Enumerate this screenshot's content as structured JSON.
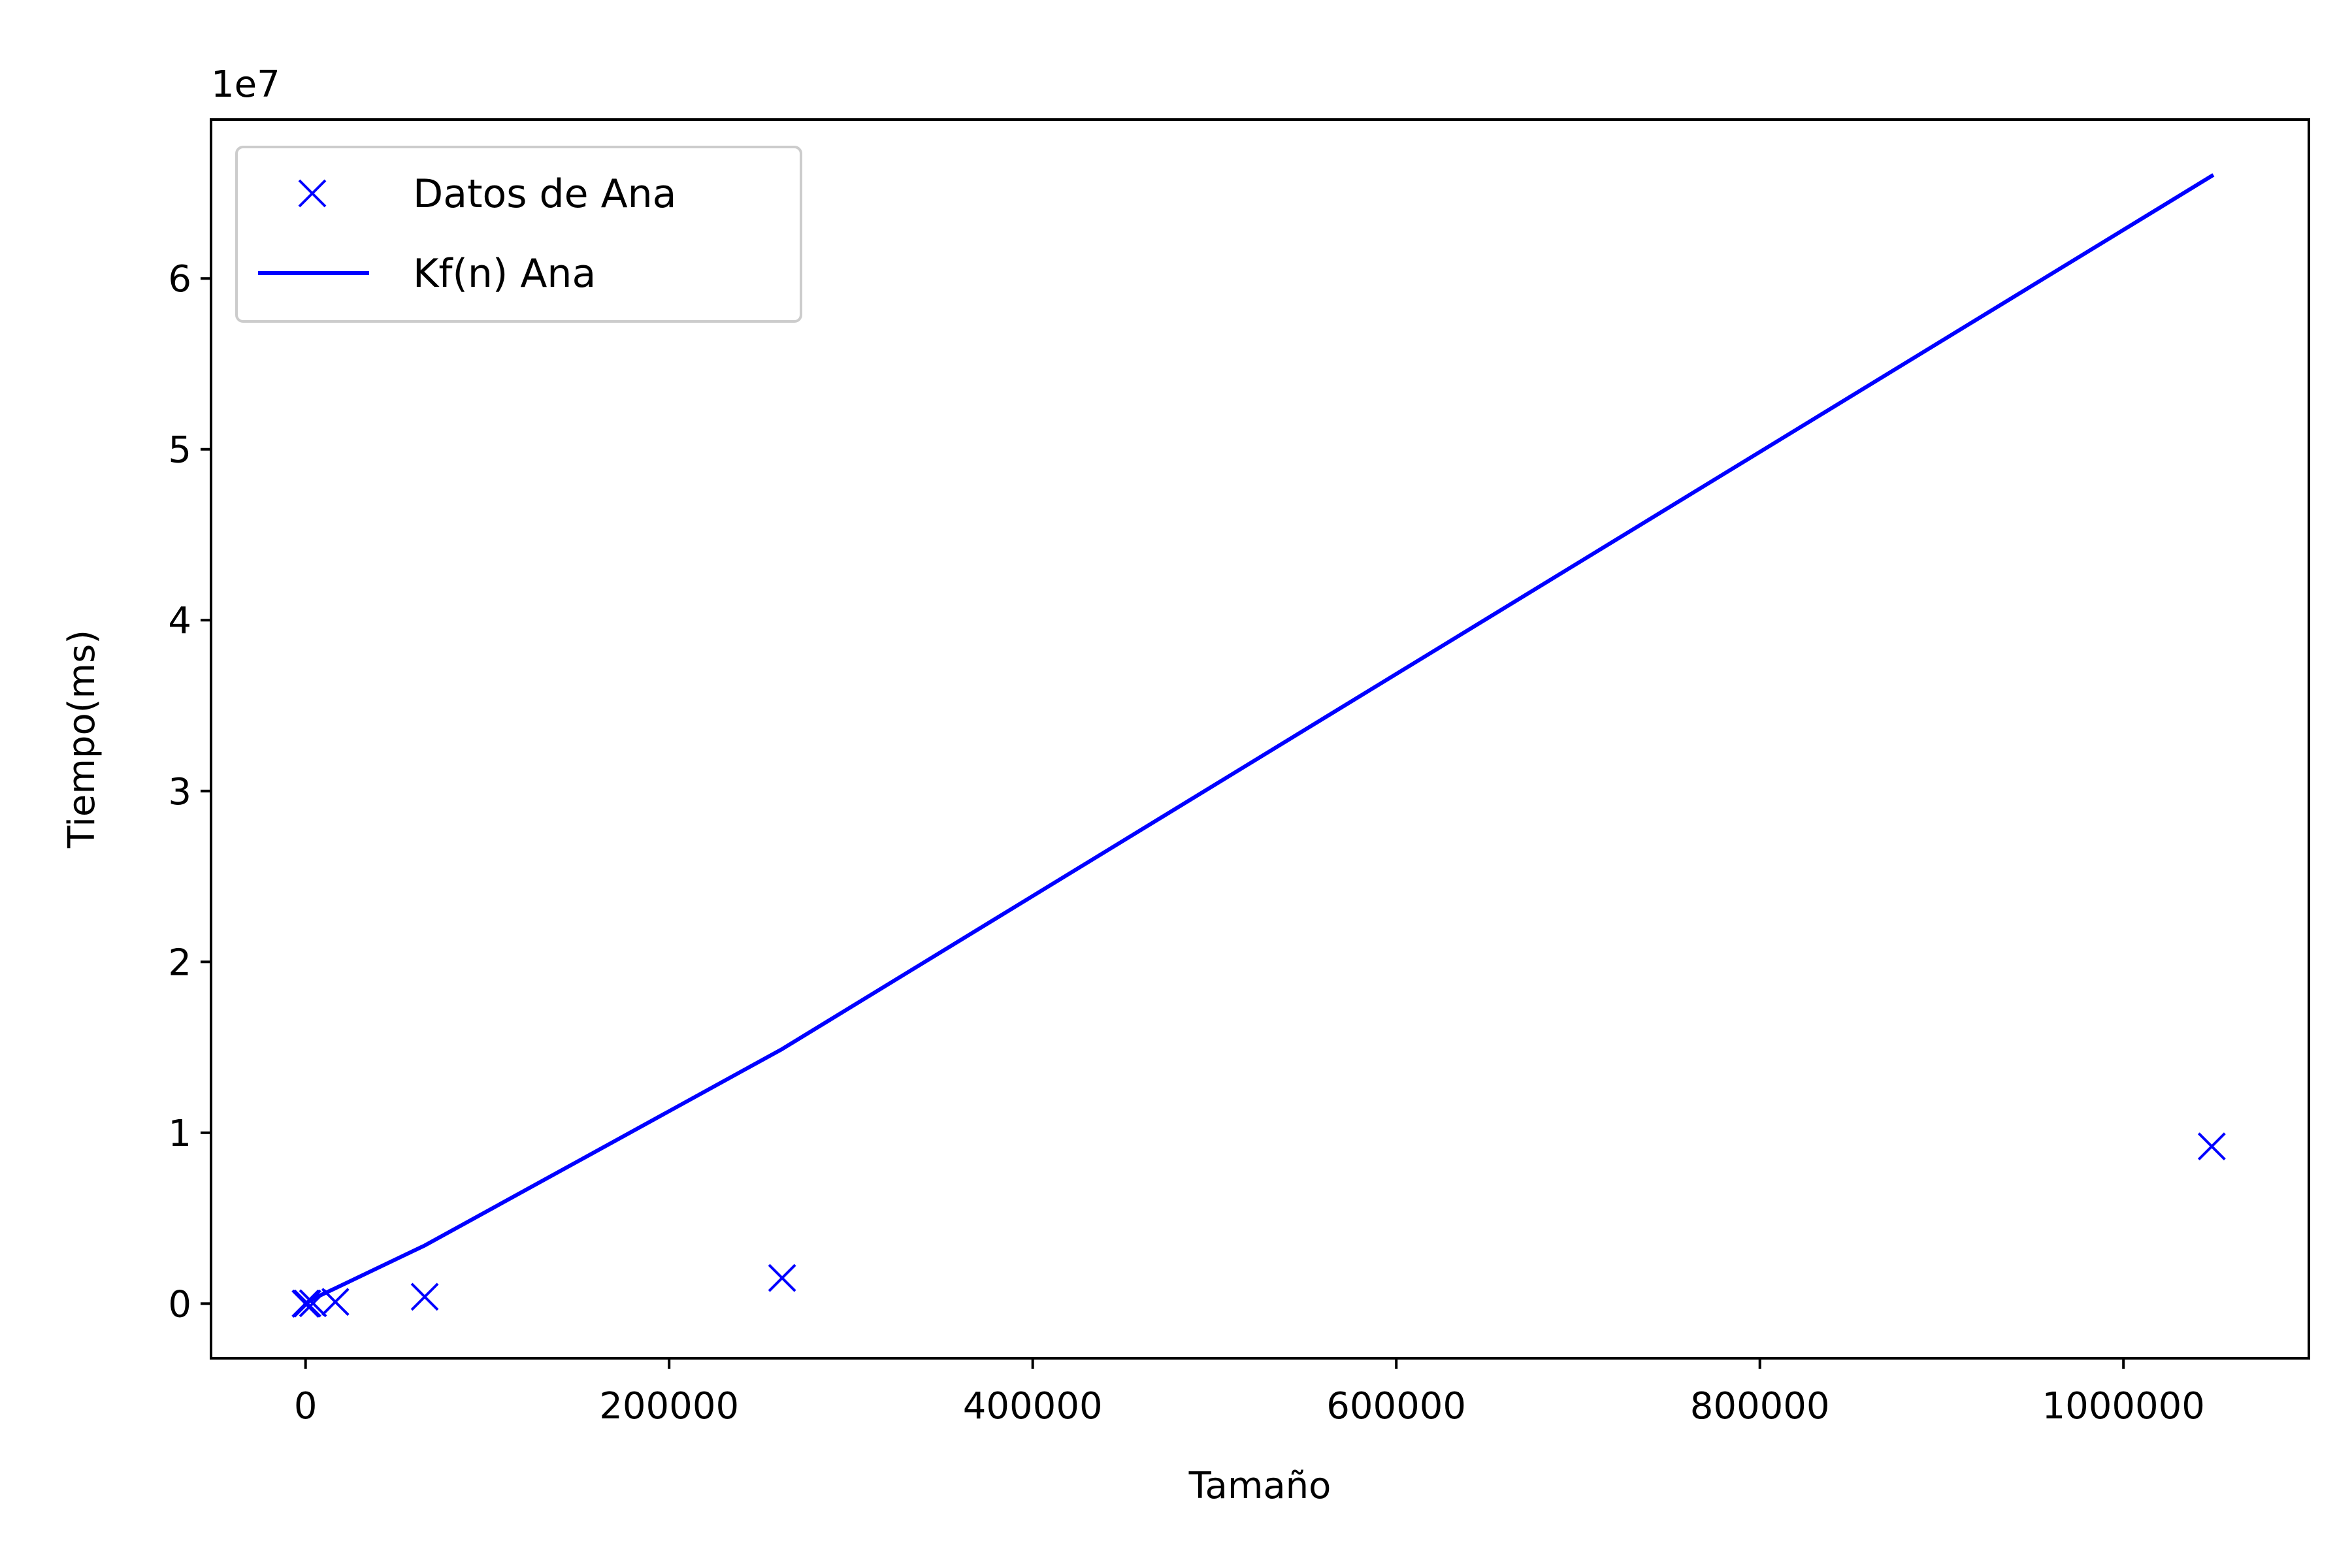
{
  "chart_data": {
    "type": "scatter",
    "xlabel": "Tamaño",
    "ylabel": "Tiempo(ms)",
    "y_offset_label": "1e7",
    "xlim": [
      -52000,
      1102000
    ],
    "ylim": [
      -3200000,
      69300000
    ],
    "y_scale_factor": 10000000,
    "x_ticks": [
      {
        "value": 0,
        "label": "0"
      },
      {
        "value": 200000,
        "label": "200000"
      },
      {
        "value": 400000,
        "label": "400000"
      },
      {
        "value": 600000,
        "label": "600000"
      },
      {
        "value": 800000,
        "label": "800000"
      },
      {
        "value": 1000000,
        "label": "1000000"
      }
    ],
    "y_ticks": [
      {
        "value": 0,
        "label": "0"
      },
      {
        "value": 10000000,
        "label": "1"
      },
      {
        "value": 20000000,
        "label": "2"
      },
      {
        "value": 30000000,
        "label": "3"
      },
      {
        "value": 40000000,
        "label": "4"
      },
      {
        "value": 50000000,
        "label": "5"
      },
      {
        "value": 60000000,
        "label": "6"
      }
    ],
    "grid": false,
    "legend_position": "top-left",
    "series": [
      {
        "name": "Datos de Ana",
        "kind": "scatter",
        "marker": "x",
        "color": "#0000ff",
        "x": [
          16,
          64,
          256,
          1024,
          4096,
          16384,
          65536,
          262144,
          1048576
        ],
        "y": [
          0,
          200,
          1000,
          4000,
          20000,
          100000,
          400000,
          1500000,
          9200000
        ]
      },
      {
        "name": "Kf(n) Ana",
        "kind": "line",
        "color": "#0000ff",
        "x": [
          16,
          64,
          256,
          1024,
          4096,
          16384,
          65536,
          262144,
          1048576
        ],
        "y": [
          1000,
          4000,
          15000,
          70000,
          280000,
          900000,
          3400000,
          14900000,
          66000000
        ]
      }
    ]
  }
}
